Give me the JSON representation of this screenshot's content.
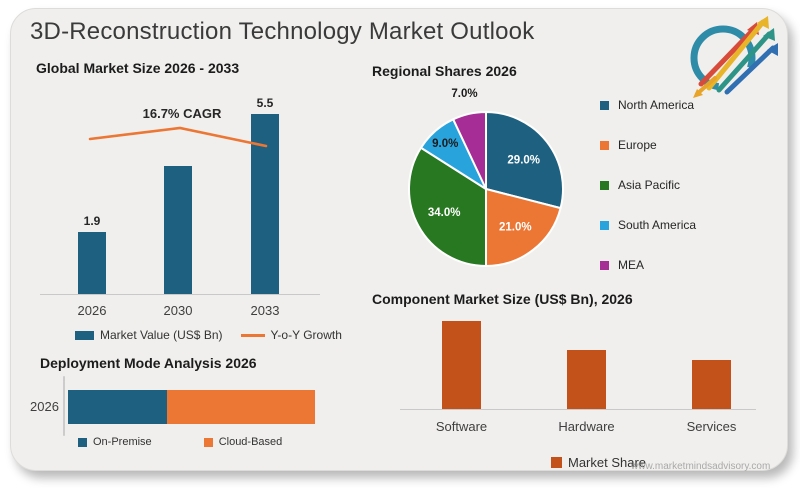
{
  "page": {
    "title": "3D-Reconstruction Technology Market Outlook",
    "watermark": "www.marketmindsadvisory.com"
  },
  "colors": {
    "teal": "#1e6080",
    "orange": "#ec7633",
    "rust": "#c2511a",
    "green": "#287822",
    "light_blue": "#29a3dc",
    "magenta": "#a62c96",
    "card_bg": "#f0efed",
    "title_text": "#3a3a3a"
  },
  "chart_data": [
    {
      "id": "market_size",
      "type": "bar",
      "title": "Global Market Size 2026 - 2033",
      "categories": [
        "2026",
        "2030",
        "2033"
      ],
      "values": [
        1.9,
        3.9,
        5.5
      ],
      "value_labels": [
        "1.9",
        "",
        "5.5"
      ],
      "annotation": "16.7% CAGR",
      "ylabel": "",
      "xlabel": "",
      "ylim": [
        0,
        6
      ],
      "bar_color": "#1e6080",
      "line_color": "#ec7633",
      "legend": [
        {
          "label": "Market Value (US$ Bn)",
          "color": "#1e6080",
          "type": "square"
        },
        {
          "label": "Y-o-Y Growth",
          "color": "#ec7633",
          "type": "line"
        }
      ]
    },
    {
      "id": "regional_shares",
      "type": "pie",
      "title": "Regional Shares 2026",
      "slices": [
        {
          "label": "North America",
          "value": 29.0,
          "color": "#1e6080"
        },
        {
          "label": "Europe",
          "value": 21.0,
          "color": "#ec7633"
        },
        {
          "label": "Asia Pacific",
          "value": 34.0,
          "color": "#287822"
        },
        {
          "label": "South America",
          "value": 9.0,
          "color": "#29a3dc"
        },
        {
          "label": "MEA",
          "value": 7.0,
          "color": "#a62c96"
        }
      ],
      "legend_position": "right"
    },
    {
      "id": "deployment_mode",
      "type": "bar",
      "subtype": "stacked-horizontal",
      "title": "Deployment Mode Analysis 2026",
      "categories": [
        "2026"
      ],
      "series": [
        {
          "name": "On-Premise",
          "values": [
            40
          ],
          "color": "#1e6080"
        },
        {
          "name": "Cloud-Based",
          "values": [
            60
          ],
          "color": "#ec7633"
        }
      ]
    },
    {
      "id": "component_market",
      "type": "bar",
      "title": "Component Market Size (US$ Bn), 2026",
      "categories": [
        "Software",
        "Hardware",
        "Services"
      ],
      "values": [
        0.9,
        0.6,
        0.5
      ],
      "bar_color": "#c2511a",
      "legend": [
        {
          "label": "Market Share",
          "color": "#c2511a",
          "type": "square"
        }
      ]
    }
  ]
}
